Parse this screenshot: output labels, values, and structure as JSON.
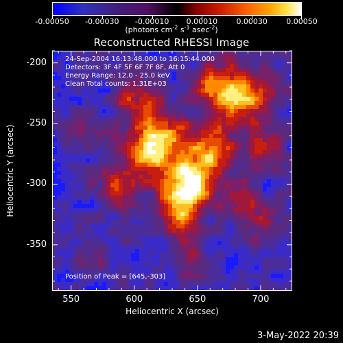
{
  "colorbar": {
    "tick_labels": [
      "-0.00050",
      "-0.00030",
      "-0.00010",
      "0.00010",
      "0.00030",
      "0.00050"
    ],
    "tick_values": [
      -0.0005,
      -0.0003,
      -0.0001,
      0.0001,
      0.0003,
      0.0005
    ],
    "range": [
      -0.0005,
      0.0005
    ],
    "units_prefix": "(photons cm",
    "units_exp1": "-2",
    "units_mid1": " s",
    "units_exp2": "-1",
    "units_mid2": " asec",
    "units_exp3": "-2",
    "units_suffix": ")"
  },
  "image": {
    "title": "Reconstructed RHESSI Image",
    "annotation_lines": [
      "24-Sep-2004 16:13:48.000 to 16:15:44.000",
      "Detectors: 3F 4F 5F 6F 7F 8F, Att 0",
      "Energy Range: 12.0 - 25.0 keV",
      "Clean    Total counts: 1.31E+03"
    ],
    "peak_label": "Position of Peak = [645,-303]",
    "xlabel": "Heliocentric X (arcsec)",
    "ylabel": "Heliocentric Y (arcsec)",
    "x_ticks": [
      "550",
      "600",
      "650",
      "700"
    ],
    "x_tick_values": [
      550,
      600,
      650,
      700
    ],
    "y_ticks": [
      "-200",
      "-250",
      "-300",
      "-350"
    ],
    "y_tick_values": [
      -200,
      -250,
      -300,
      -350
    ],
    "x_range": [
      535,
      725
    ],
    "y_range": [
      -190,
      -388
    ],
    "peak_position": [
      645,
      -303
    ],
    "palette": [
      "#1a1aff",
      "#3a2bc8",
      "#4a2d9a",
      "#5a2a80",
      "#7a1f6a",
      "#a0183a",
      "#c81e10",
      "#e84a00",
      "#ff8a00",
      "#ffc020",
      "#fff080",
      "#ffffff"
    ]
  },
  "footer": {
    "timestamp": "3-May-2022 20:39"
  }
}
